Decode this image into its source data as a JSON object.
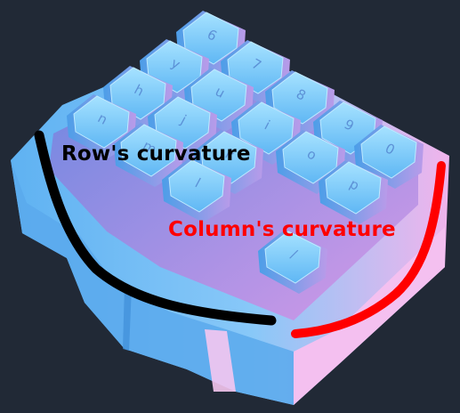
{
  "annotations": {
    "row_label": "Row's curvature",
    "col_label": "Column's curvature",
    "row_color": "#000000",
    "col_color": "#ff0000"
  },
  "keycaps": {
    "legends": [
      "6",
      "y",
      "7",
      "h",
      "u",
      "8",
      "n",
      "j",
      "i",
      "9",
      "m",
      "k",
      "o",
      "0",
      "l",
      "p",
      "/"
    ]
  },
  "colors": {
    "background": "#212936",
    "key_light": "#8ed4ff",
    "key_mid": "#59b6f5",
    "case_blue": "#6bbcf6",
    "case_pink": "#f2b6ee"
  }
}
